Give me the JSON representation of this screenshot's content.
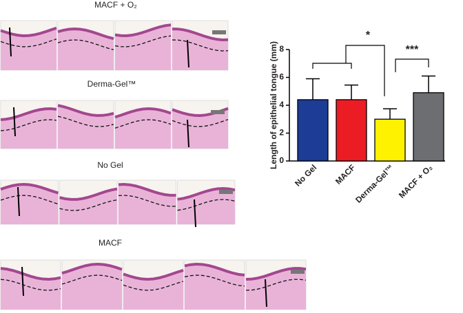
{
  "panels": [
    {
      "label": "MACF + O₂"
    },
    {
      "label": "Derma-Gel™"
    },
    {
      "label": "No Gel"
    },
    {
      "label": "MACF"
    }
  ],
  "chart_data": {
    "type": "bar",
    "y_label": "Length of epithelial  tongue (mm)",
    "categories": [
      "No Gel",
      "MACF",
      "Derma-Gel™",
      "MACF + O₂"
    ],
    "values": [
      4.4,
      4.4,
      3.0,
      4.9
    ],
    "errors": [
      1.5,
      1.05,
      0.75,
      1.2
    ],
    "colors": [
      "#1d3c96",
      "#ec1c24",
      "#fff200",
      "#6d6e71"
    ],
    "ylim": [
      0,
      8
    ],
    "yticks": [
      0,
      2,
      4,
      6,
      8
    ],
    "annotations": [
      {
        "label": "*"
      },
      {
        "label": "***"
      }
    ]
  }
}
